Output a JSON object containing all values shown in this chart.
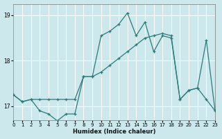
{
  "xlabel": "Humidex (Indice chaleur)",
  "xlim": [
    0,
    23
  ],
  "ylim": [
    16.7,
    19.25
  ],
  "yticks": [
    17,
    18,
    19
  ],
  "xticks": [
    0,
    1,
    2,
    3,
    4,
    5,
    6,
    7,
    8,
    9,
    10,
    11,
    12,
    13,
    14,
    15,
    16,
    17,
    18,
    19,
    20,
    21,
    22,
    23
  ],
  "bg_color": "#cce8ec",
  "grid_color": "#ffffff",
  "line_color": "#2d7a7a",
  "series1_x": [
    0,
    1,
    2,
    3,
    4,
    5,
    6,
    7,
    8,
    9,
    10,
    11,
    12,
    13,
    14,
    15,
    16,
    17,
    18,
    19,
    20,
    21,
    22,
    23
  ],
  "series1_y": [
    17.25,
    17.1,
    17.15,
    16.9,
    16.83,
    16.68,
    16.83,
    16.83,
    17.65,
    17.65,
    18.55,
    18.65,
    18.8,
    19.05,
    18.55,
    18.85,
    18.2,
    18.55,
    18.5,
    17.15,
    17.35,
    17.4,
    17.15,
    16.9
  ],
  "series2_x": [
    0,
    1,
    2,
    3,
    4,
    5,
    6,
    7,
    8,
    9,
    10,
    11,
    12,
    13,
    14,
    15,
    16,
    17,
    18,
    19,
    20,
    21,
    22,
    23
  ],
  "series2_y": [
    17.25,
    17.1,
    17.15,
    17.15,
    17.15,
    17.15,
    17.15,
    17.15,
    17.65,
    17.65,
    17.75,
    17.9,
    18.05,
    18.2,
    18.35,
    18.5,
    18.55,
    18.6,
    18.55,
    17.15,
    17.35,
    17.4,
    18.45,
    16.9
  ]
}
